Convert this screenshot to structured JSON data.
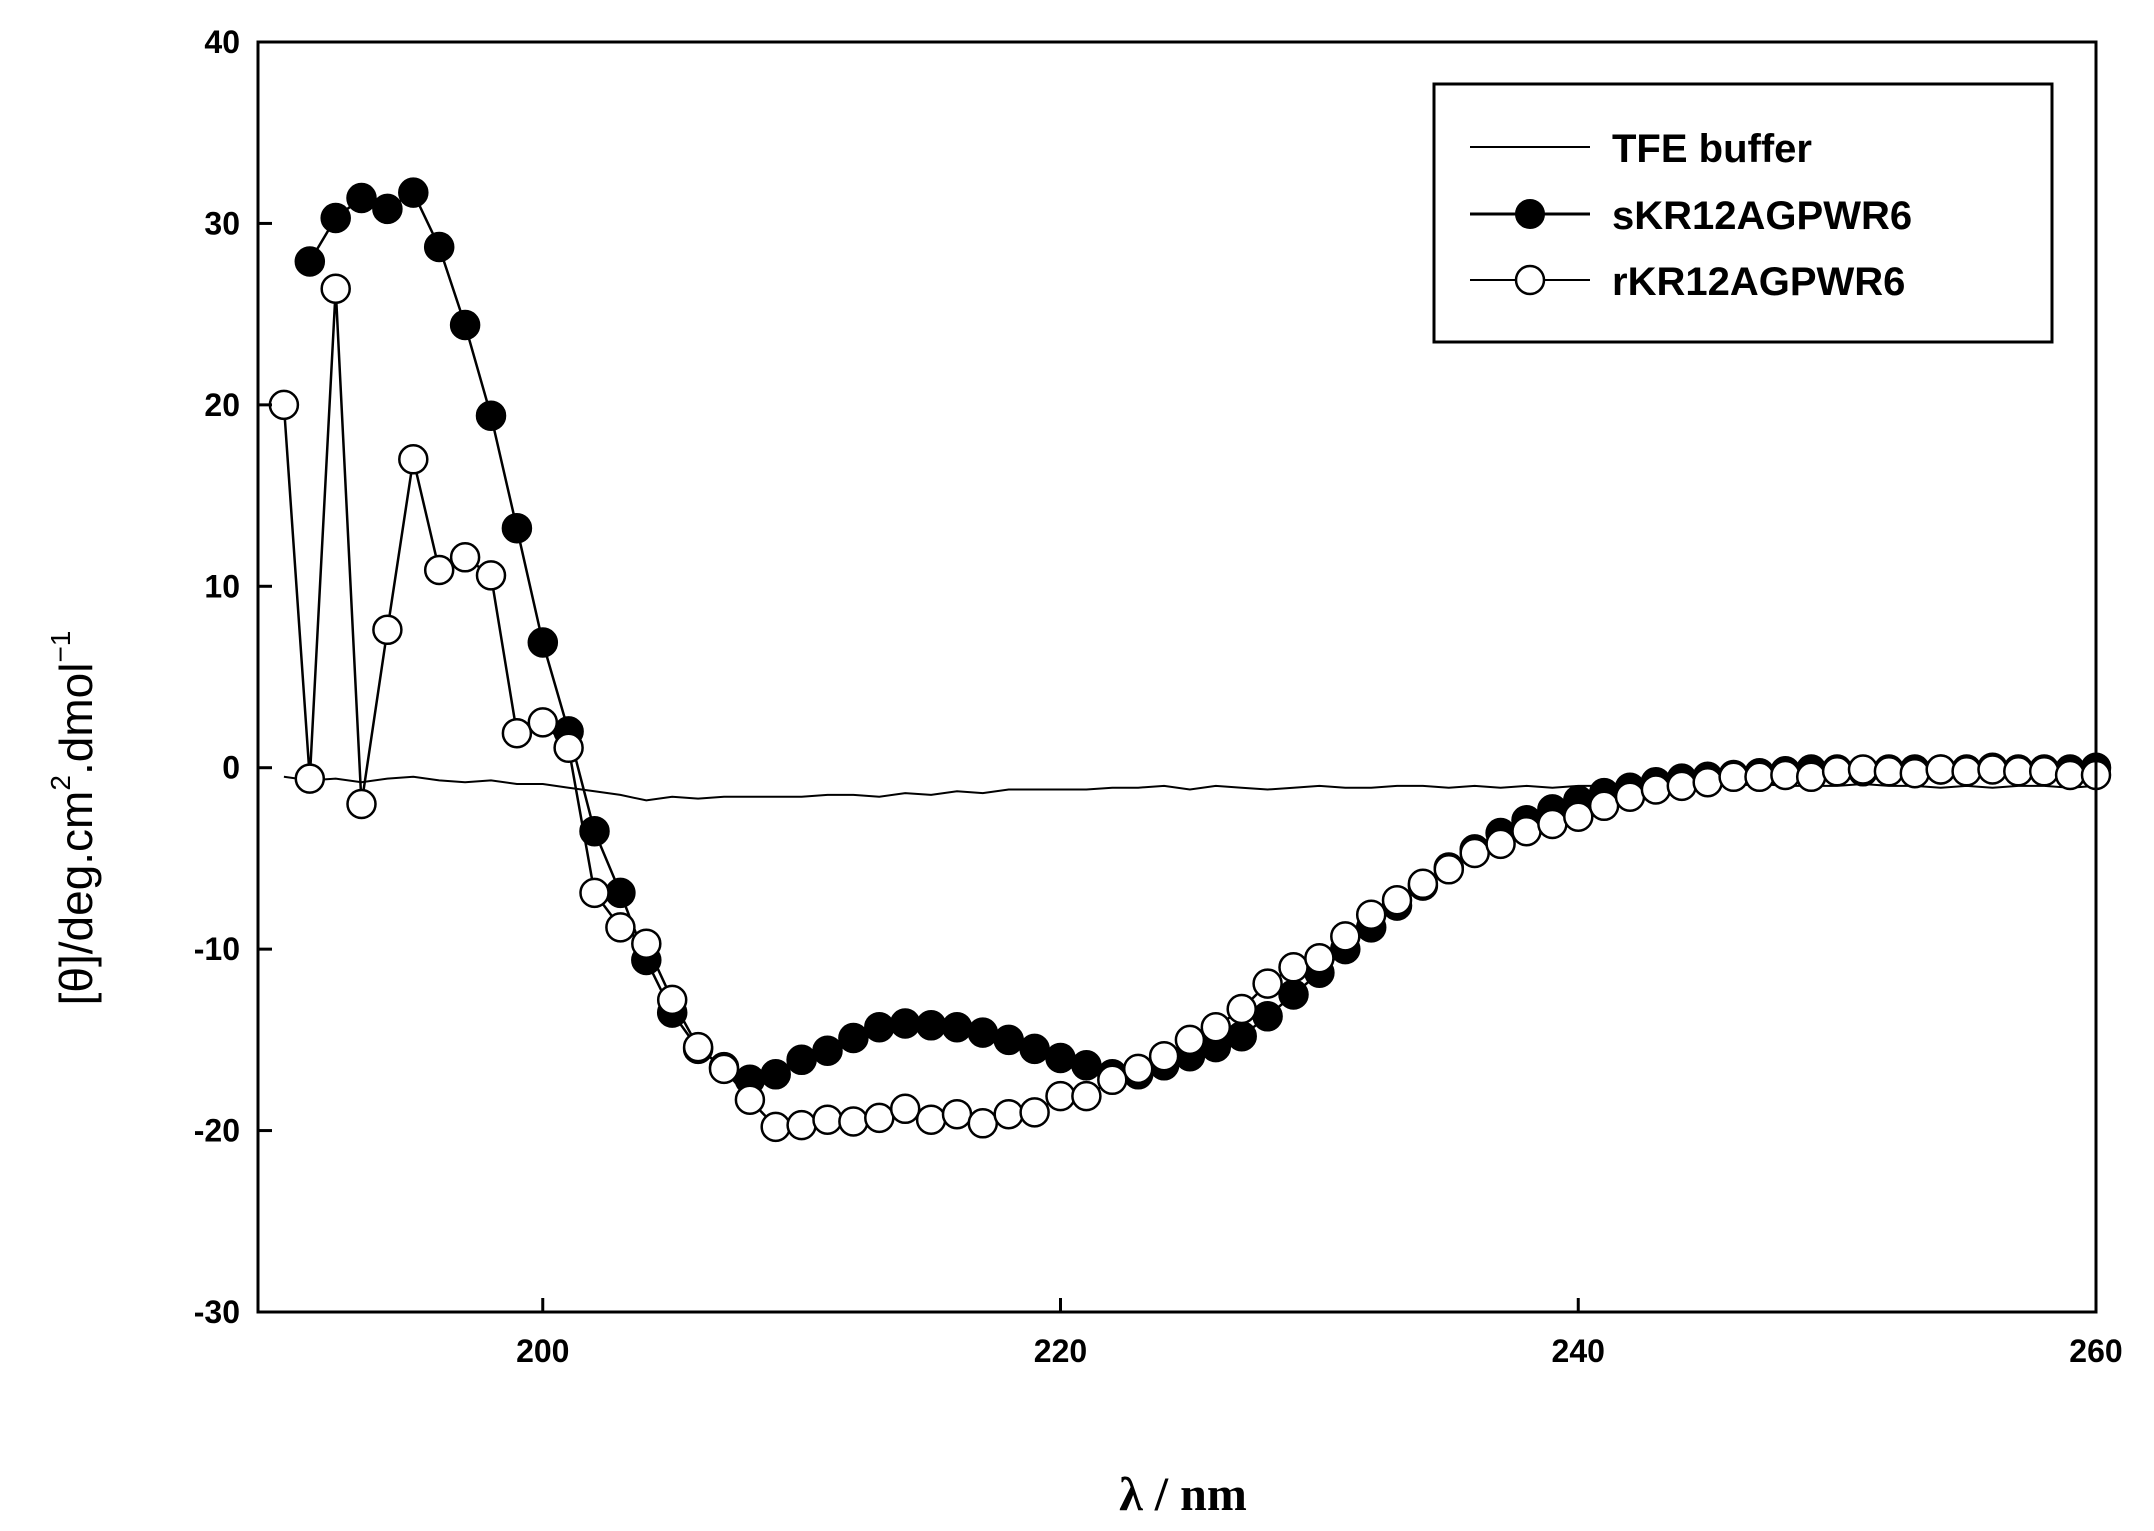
{
  "chart_data": {
    "type": "line",
    "title": "",
    "xlabel": "λ / nm",
    "ylabel_parts": [
      "[θ]/deg.cm",
      "2",
      ".dmol",
      "−1"
    ],
    "xlim": [
      189,
      260
    ],
    "ylim": [
      -30,
      40
    ],
    "xticks": [
      200,
      220,
      240,
      260
    ],
    "yticks": [
      -30,
      -20,
      -10,
      0,
      10,
      20,
      30,
      40
    ],
    "grid": false,
    "legend_position": "top-right",
    "series": [
      {
        "name": "TFE buffer",
        "style": "line",
        "x": [
          190,
          191,
          192,
          193,
          194,
          195,
          196,
          197,
          198,
          199,
          200,
          201,
          202,
          203,
          204,
          205,
          206,
          207,
          208,
          209,
          210,
          211,
          212,
          213,
          214,
          215,
          216,
          217,
          218,
          219,
          220,
          221,
          222,
          223,
          224,
          225,
          226,
          227,
          228,
          229,
          230,
          231,
          232,
          233,
          234,
          235,
          236,
          237,
          238,
          239,
          240,
          241,
          242,
          243,
          244,
          245,
          246,
          247,
          248,
          249,
          250,
          251,
          252,
          253,
          254,
          255,
          256,
          257,
          258,
          259,
          260
        ],
        "values": [
          -0.5,
          -0.7,
          -0.6,
          -0.8,
          -0.6,
          -0.5,
          -0.7,
          -0.8,
          -0.7,
          -0.9,
          -0.9,
          -1.1,
          -1.3,
          -1.5,
          -1.8,
          -1.6,
          -1.7,
          -1.6,
          -1.6,
          -1.6,
          -1.6,
          -1.5,
          -1.5,
          -1.6,
          -1.4,
          -1.5,
          -1.3,
          -1.4,
          -1.2,
          -1.2,
          -1.2,
          -1.2,
          -1.1,
          -1.1,
          -1.0,
          -1.2,
          -1.0,
          -1.1,
          -1.2,
          -1.1,
          -1.0,
          -1.1,
          -1.1,
          -1.0,
          -1.0,
          -1.1,
          -1.0,
          -1.1,
          -1.0,
          -1.1,
          -1.0,
          -1.0,
          -1.0,
          -0.9,
          -1.0,
          -1.0,
          -1.0,
          -0.9,
          -1.0,
          -1.0,
          -1.0,
          -0.9,
          -1.0,
          -1.0,
          -1.1,
          -1.0,
          -1.1,
          -1.0,
          -1.0,
          -1.1,
          -1.0
        ]
      },
      {
        "name": "sKR12AGPWR6",
        "style": "filled-circles",
        "x": [
          191,
          192,
          193,
          194,
          195,
          196,
          197,
          198,
          199,
          200,
          201,
          202,
          203,
          204,
          205,
          206,
          207,
          208,
          209,
          210,
          211,
          212,
          213,
          214,
          215,
          216,
          217,
          218,
          219,
          220,
          221,
          222,
          223,
          224,
          225,
          226,
          227,
          228,
          229,
          230,
          231,
          232,
          233,
          234,
          235,
          236,
          237,
          238,
          239,
          240,
          241,
          242,
          243,
          244,
          245,
          246,
          247,
          248,
          249,
          250,
          251,
          252,
          253,
          254,
          255,
          256,
          257,
          258,
          259,
          260
        ],
        "values": [
          27.9,
          30.3,
          31.4,
          30.8,
          31.7,
          28.7,
          24.4,
          19.4,
          13.2,
          6.9,
          2.0,
          -3.5,
          -6.9,
          -10.6,
          -13.5,
          -15.5,
          -16.5,
          -17.2,
          -16.9,
          -16.1,
          -15.6,
          -14.9,
          -14.3,
          -14.1,
          -14.2,
          -14.3,
          -14.6,
          -15.0,
          -15.5,
          -16.0,
          -16.4,
          -16.9,
          -16.9,
          -16.4,
          -15.9,
          -15.4,
          -14.8,
          -13.7,
          -12.5,
          -11.3,
          -10.0,
          -8.8,
          -7.6,
          -6.5,
          -5.5,
          -4.5,
          -3.6,
          -2.9,
          -2.3,
          -1.8,
          -1.4,
          -1.1,
          -0.8,
          -0.6,
          -0.5,
          -0.4,
          -0.3,
          -0.2,
          -0.1,
          -0.1,
          -0.2,
          -0.1,
          -0.1,
          -0.1,
          -0.1,
          0.0,
          -0.1,
          -0.1,
          -0.1,
          0.0
        ]
      },
      {
        "name": "rKR12AGPWR6",
        "style": "open-circles",
        "x": [
          190,
          191,
          192,
          193,
          194,
          195,
          196,
          197,
          198,
          199,
          200,
          201,
          202,
          203,
          204,
          205,
          206,
          207,
          208,
          209,
          210,
          211,
          212,
          213,
          214,
          215,
          216,
          217,
          218,
          219,
          220,
          221,
          222,
          223,
          224,
          225,
          226,
          227,
          228,
          229,
          230,
          231,
          232,
          233,
          234,
          235,
          236,
          237,
          238,
          239,
          240,
          241,
          242,
          243,
          244,
          245,
          246,
          247,
          248,
          249,
          250,
          251,
          252,
          253,
          254,
          255,
          256,
          257,
          258,
          259,
          260
        ],
        "values": [
          20.0,
          -0.6,
          26.4,
          -2.0,
          7.6,
          17.0,
          10.9,
          11.6,
          10.6,
          1.9,
          2.5,
          1.1,
          -6.9,
          -8.8,
          -9.7,
          -12.8,
          -15.4,
          -16.6,
          -18.3,
          -19.8,
          -19.7,
          -19.4,
          -19.5,
          -19.3,
          -18.8,
          -19.4,
          -19.1,
          -19.6,
          -19.1,
          -19.0,
          -18.1,
          -18.1,
          -17.2,
          -16.6,
          -15.9,
          -15.0,
          -14.3,
          -13.3,
          -11.9,
          -11.0,
          -10.5,
          -9.3,
          -8.1,
          -7.3,
          -6.4,
          -5.6,
          -4.7,
          -4.2,
          -3.5,
          -3.1,
          -2.7,
          -2.1,
          -1.6,
          -1.2,
          -1.0,
          -0.8,
          -0.5,
          -0.5,
          -0.4,
          -0.5,
          -0.2,
          -0.1,
          -0.2,
          -0.3,
          -0.1,
          -0.2,
          -0.1,
          -0.2,
          -0.2,
          -0.4,
          -0.4
        ]
      }
    ]
  }
}
